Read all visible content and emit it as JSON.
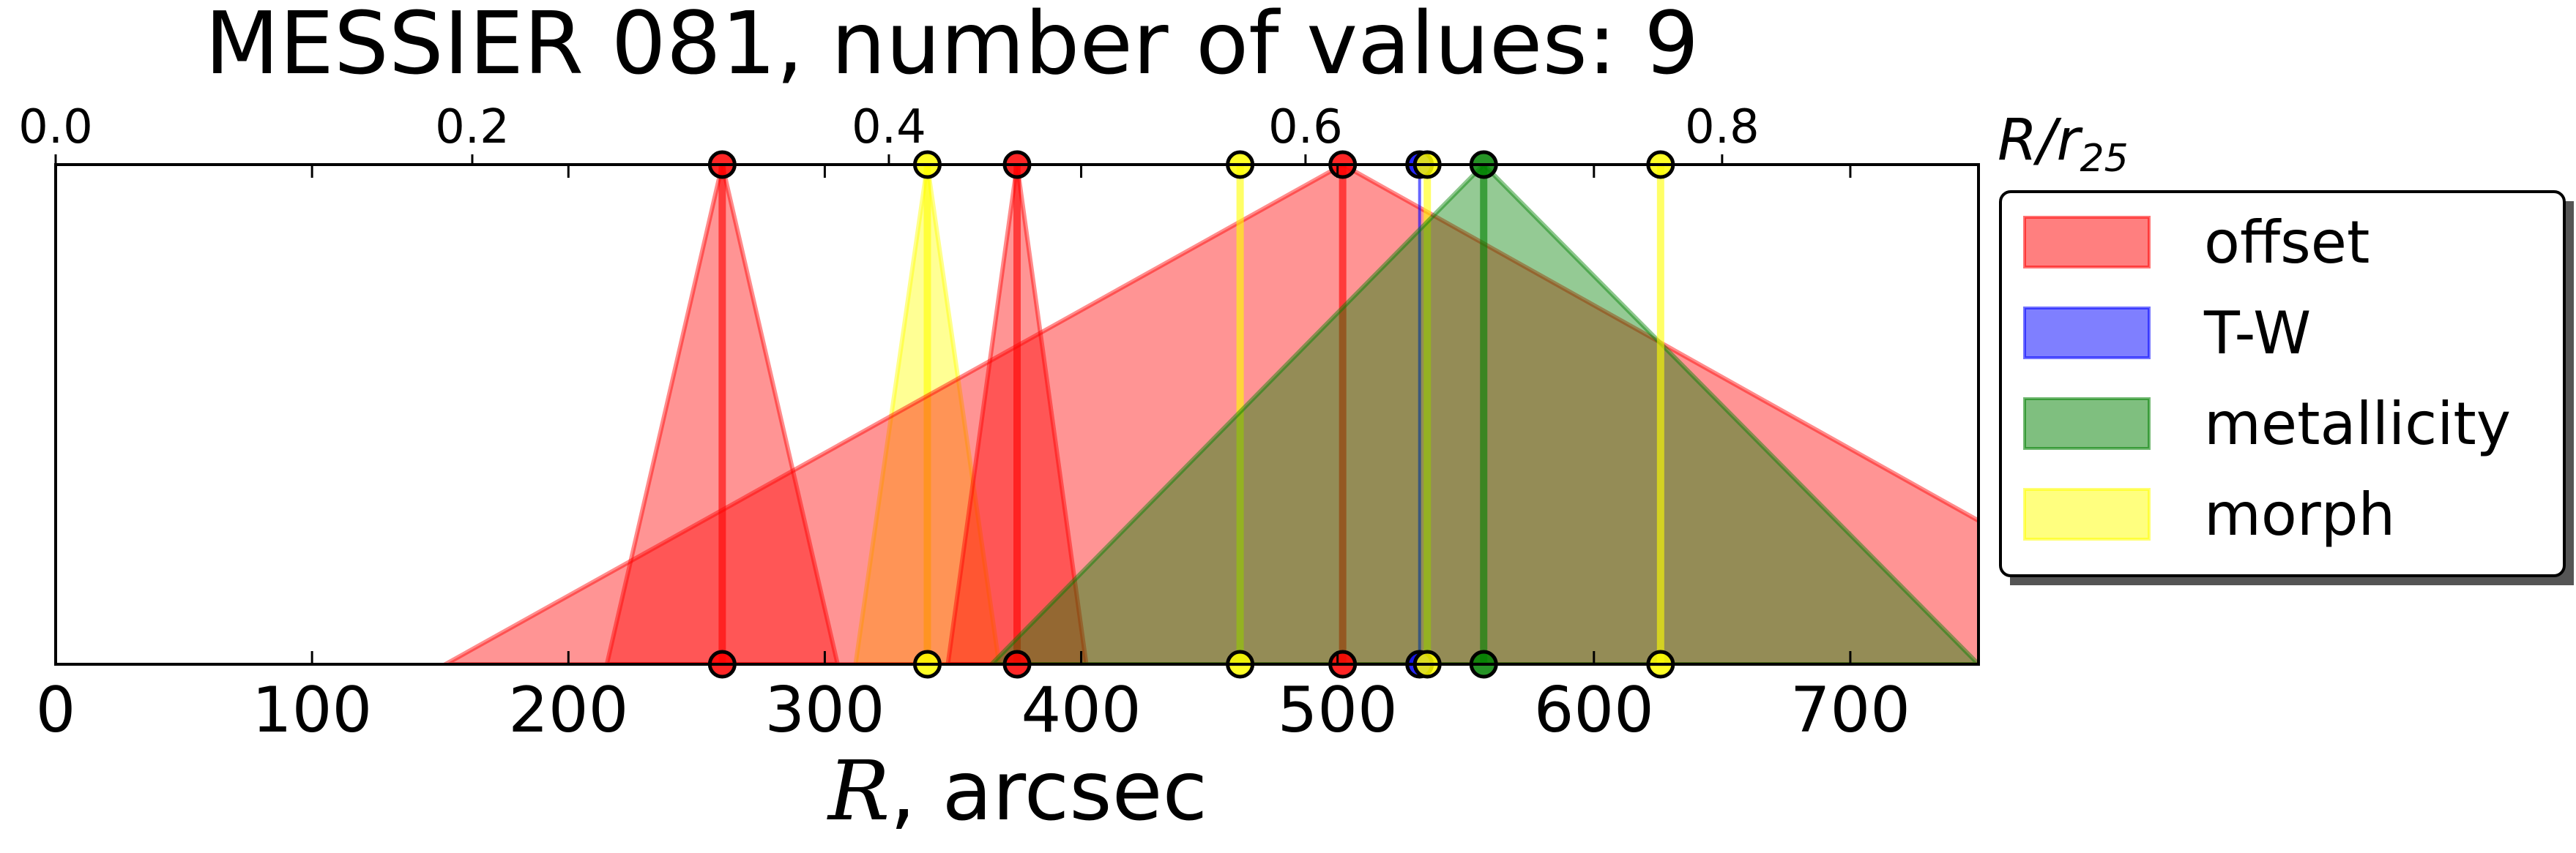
{
  "chart_data": {
    "type": "area",
    "title": "MESSIER 081, number of values: 9",
    "xlabel_symbol": "R",
    "xlabel_unit": ", arcsec",
    "top_axis_label_main": "R/r",
    "top_axis_label_sub": "25",
    "xlim": [
      0,
      750
    ],
    "x_ticks": [
      0,
      100,
      200,
      300,
      400,
      500,
      600,
      700
    ],
    "top_ticks": [
      {
        "r": 0,
        "label": "0.0"
      },
      {
        "r": 162.5,
        "label": "0.2"
      },
      {
        "r": 325,
        "label": "0.4"
      },
      {
        "r": 487.5,
        "label": "0.6"
      },
      {
        "r": 650,
        "label": "0.8"
      }
    ],
    "grid": false,
    "legend_position": "right",
    "legend": [
      {
        "name": "offset",
        "color": "#ff0000"
      },
      {
        "name": "T-W",
        "color": "#0000ff"
      },
      {
        "name": "metallicity",
        "color": "#008000"
      },
      {
        "name": "morph",
        "color": "#ffff00"
      }
    ],
    "series": [
      {
        "method": "offset",
        "center": 260,
        "left": 215,
        "right": 305
      },
      {
        "method": "morph",
        "center": 340,
        "left": 312,
        "right": 368
      },
      {
        "method": "offset",
        "center": 375,
        "left": 348,
        "right": 402
      },
      {
        "method": "offset",
        "center": 502,
        "left": 152,
        "right": 850
      },
      {
        "method": "morph",
        "center": 462
      },
      {
        "method": "T-W",
        "center": 532
      },
      {
        "method": "morph",
        "center": 535
      },
      {
        "method": "metallicity",
        "center": 557,
        "left": 365,
        "right": 750
      },
      {
        "method": "morph",
        "center": 626
      }
    ]
  }
}
